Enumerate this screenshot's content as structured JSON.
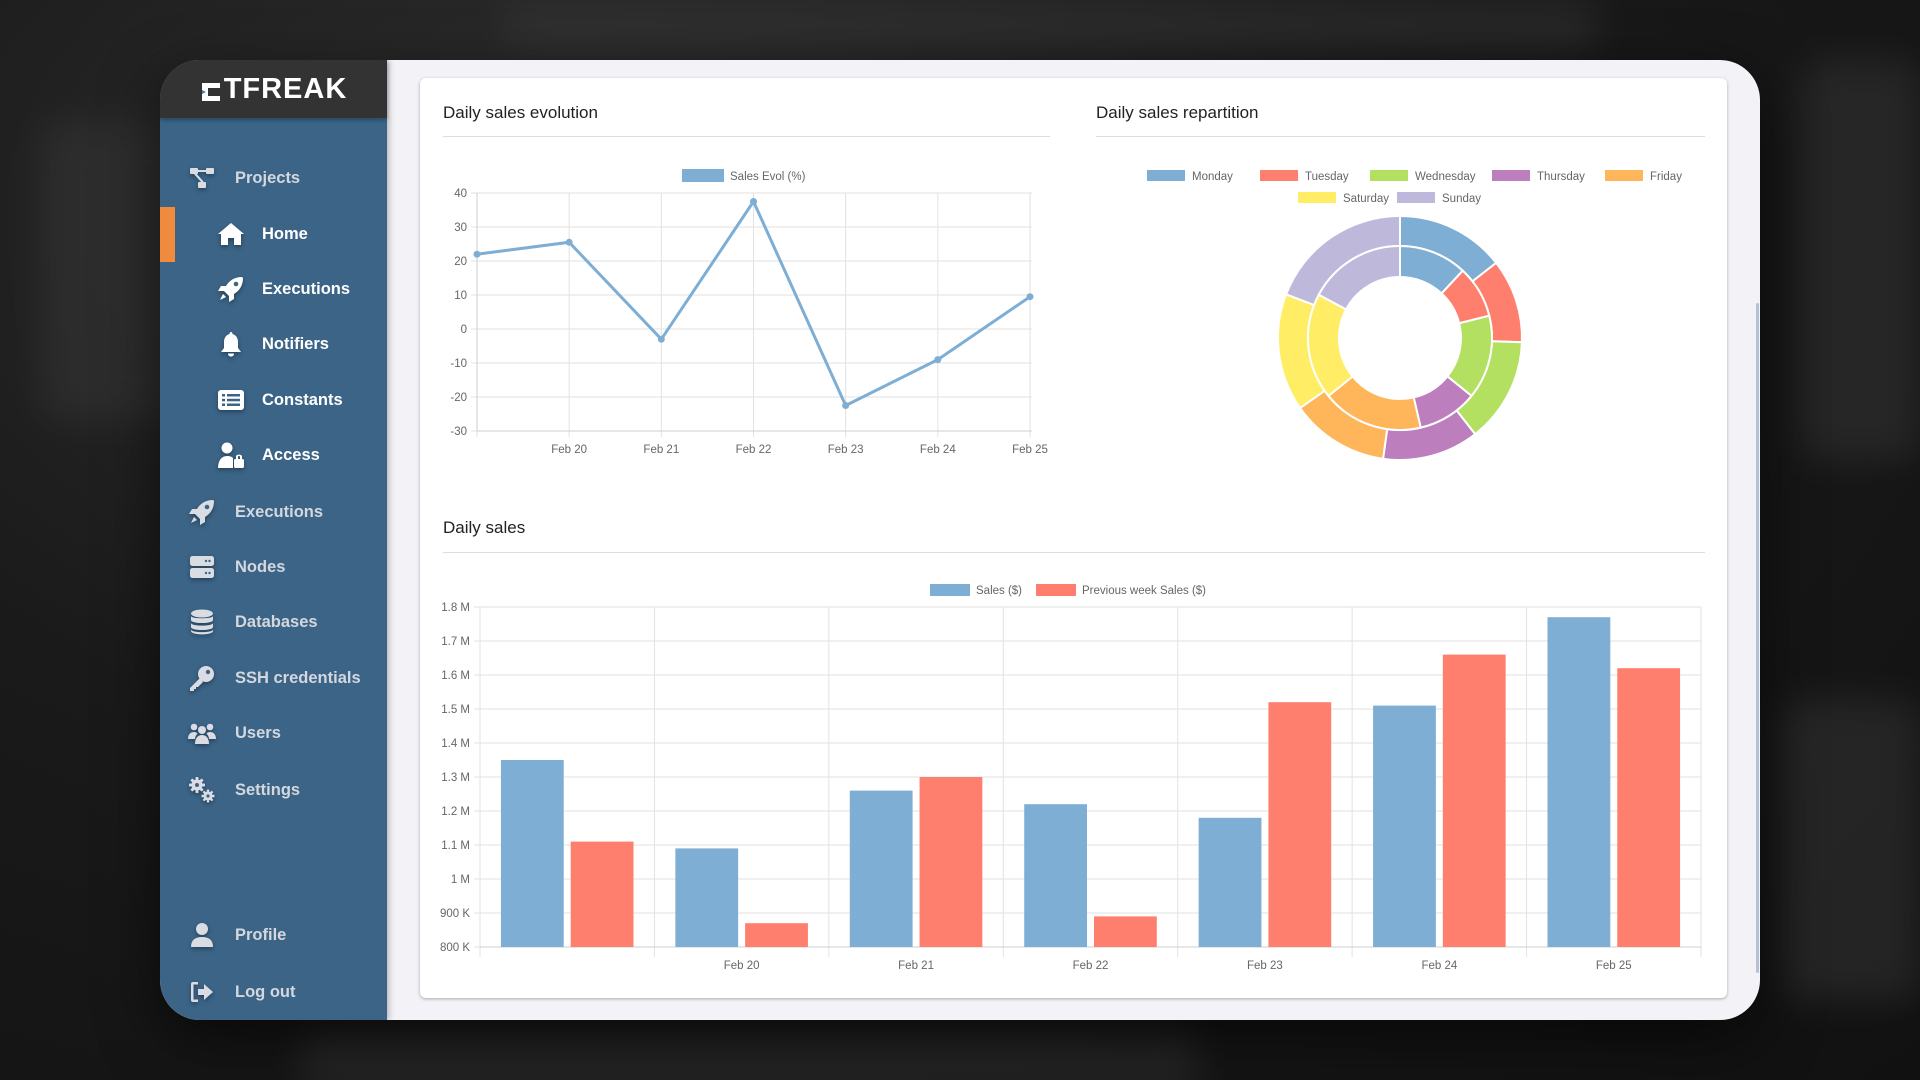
{
  "app": {
    "logo_text": "TFREAK"
  },
  "sidebar": {
    "items": [
      {
        "label": "Projects",
        "icon": "sitemap-icon",
        "level": "top"
      },
      {
        "label": "Home",
        "icon": "home-icon",
        "level": "sub",
        "active": true
      },
      {
        "label": "Executions",
        "icon": "rocket-icon",
        "level": "sub"
      },
      {
        "label": "Notifiers",
        "icon": "bell-icon",
        "level": "sub"
      },
      {
        "label": "Constants",
        "icon": "list-icon",
        "level": "sub"
      },
      {
        "label": "Access",
        "icon": "user-lock-icon",
        "level": "sub"
      },
      {
        "label": "Executions",
        "icon": "rocket-icon",
        "level": "top"
      },
      {
        "label": "Nodes",
        "icon": "server-icon",
        "level": "top"
      },
      {
        "label": "Databases",
        "icon": "database-icon",
        "level": "top"
      },
      {
        "label": "SSH credentials",
        "icon": "key-icon",
        "level": "top"
      },
      {
        "label": "Users",
        "icon": "users-icon",
        "level": "top"
      },
      {
        "label": "Settings",
        "icon": "cogs-icon",
        "level": "top"
      }
    ],
    "bottom_items": [
      {
        "label": "Profile",
        "icon": "user-icon"
      },
      {
        "label": "Log out",
        "icon": "sign-out-icon"
      }
    ],
    "accent_color": "#f08a3c",
    "background_color": "#3b6487"
  },
  "sections": {
    "evolution": {
      "title": "Daily sales evolution"
    },
    "repartition": {
      "title": "Daily sales repartition"
    },
    "daily": {
      "title": "Daily sales"
    }
  },
  "chart_data": [
    {
      "type": "line",
      "title": "Daily sales evolution",
      "legend": [
        "Sales Evol (%)"
      ],
      "categories": [
        "",
        "Feb 20",
        "Feb 21",
        "Feb 22",
        "Feb 23",
        "Feb 24",
        "Feb 25"
      ],
      "series": [
        {
          "name": "Sales Evol (%)",
          "color": "#7eaed4",
          "values": [
            22,
            25.5,
            -3,
            37.5,
            -22.5,
            -9,
            9.5
          ]
        }
      ],
      "yticks": [
        "40",
        "30",
        "20",
        "10",
        "0",
        "-10",
        "-20",
        "-30"
      ],
      "ylim": [
        -30,
        40
      ],
      "grid": true,
      "legend_position": "top"
    },
    {
      "type": "pie",
      "subtype": "doughnut",
      "title": "Daily sales repartition",
      "categories": [
        "Monday",
        "Tuesday",
        "Wednesday",
        "Thursday",
        "Friday",
        "Saturday",
        "Sunday"
      ],
      "colors": [
        "#7eaed4",
        "#ff7f6e",
        "#b3e061",
        "#bd7ebe",
        "#ffb55a",
        "#ffee65",
        "#beb9db"
      ],
      "series": [
        {
          "name": "outer",
          "values": [
            52,
            40,
            50,
            46,
            47,
            56,
            69
          ]
        },
        {
          "name": "inner",
          "values": [
            43,
            33,
            53,
            38,
            64,
            67,
            62
          ]
        }
      ],
      "legend_position": "top"
    },
    {
      "type": "bar",
      "title": "Daily sales",
      "legend": [
        "Sales ($)",
        "Previous week Sales ($)"
      ],
      "categories": [
        "",
        "Feb 20",
        "Feb 21",
        "Feb 22",
        "Feb 23",
        "Feb 24",
        "Feb 25"
      ],
      "series": [
        {
          "name": "Sales ($)",
          "color": "#7eaed4",
          "values": [
            1350000,
            1090000,
            1260000,
            1220000,
            1180000,
            1510000,
            1770000
          ]
        },
        {
          "name": "Previous week Sales ($)",
          "color": "#ff7f6e",
          "values": [
            1110000,
            870000,
            1300000,
            890000,
            1520000,
            1660000,
            1620000
          ]
        }
      ],
      "yticks": [
        "1.8 M",
        "1.7 M",
        "1.6 M",
        "1.5 M",
        "1.4 M",
        "1.3 M",
        "1.2 M",
        "1.1 M",
        "1 M",
        "900 K",
        "800 K"
      ],
      "ylim": [
        800000,
        1800000
      ],
      "grid": true,
      "legend_position": "top"
    }
  ]
}
